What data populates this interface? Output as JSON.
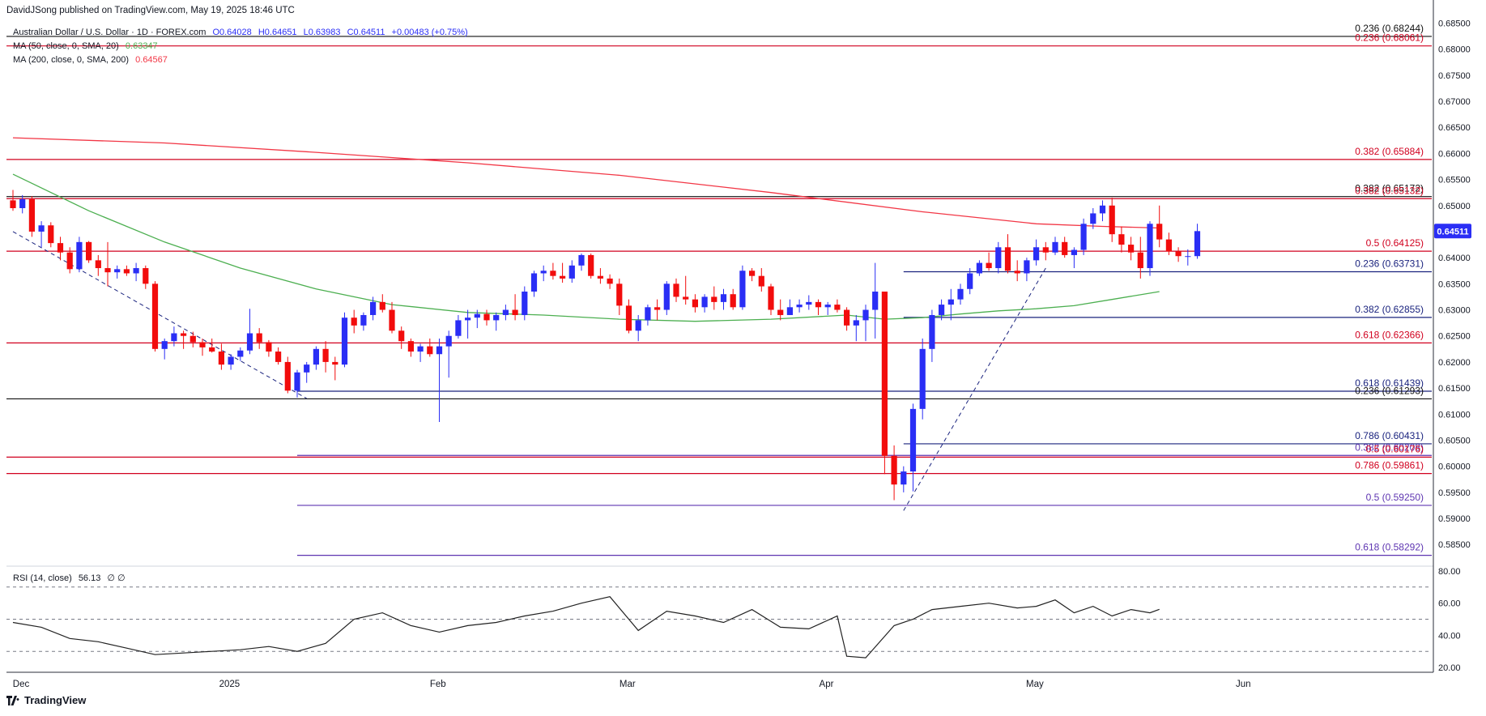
{
  "header": {
    "publisher": "DavidJSong published on TradingView.com, May 19, 2025 18:46 UTC"
  },
  "legend": {
    "symbol": "Australian Dollar / U.S. Dollar · 1D · FOREX.com",
    "open": "O0.64028",
    "high": "H0.64651",
    "low": "L0.63983",
    "close": "C0.64511",
    "change": "+0.00483 (+0.75%)",
    "ma50_label": "MA (50, close, 0, SMA, 20)",
    "ma50_value": "0.63347",
    "ma200_label": "MA (200, close, 0, SMA, 200)",
    "ma200_value": "0.64567",
    "rsi_label": "RSI (14, close)",
    "rsi_value": "56.13",
    "rsi_extra": "∅ ∅"
  },
  "footer": {
    "brand": "TradingView"
  },
  "colors": {
    "up": "#2a2ef5",
    "down": "#f20c0c",
    "ma50": "#4caf50",
    "ma200": "#f23645",
    "fib_red": "#d1001f",
    "fib_blue": "#1a237e",
    "fib_purple": "#5e35b1",
    "rsi": "#222222"
  },
  "chart_data": [
    {
      "type": "candlestick",
      "title": "",
      "ylim": [
        0.581,
        0.686
      ],
      "y_ticks": [
        "0.68500",
        "0.68000",
        "0.67500",
        "0.67000",
        "0.66500",
        "0.66000",
        "0.65500",
        "0.65000",
        "0.64500",
        "0.64000",
        "0.63500",
        "0.63000",
        "0.62500",
        "0.62000",
        "0.61500",
        "0.61000",
        "0.60500",
        "0.60000",
        "0.59500",
        "0.59000",
        "0.58500"
      ],
      "x_labels": [
        {
          "label": "Dec",
          "index": 0
        },
        {
          "label": "2025",
          "index": 22
        },
        {
          "label": "Feb",
          "index": 44
        },
        {
          "label": "Mar",
          "index": 64
        },
        {
          "label": "Apr",
          "index": 85
        },
        {
          "label": "May",
          "index": 107
        },
        {
          "label": "Jun",
          "index": 129
        }
      ],
      "last_price": "0.64511",
      "ohlc": [
        [
          0.651,
          0.653,
          0.649,
          0.6495
        ],
        [
          0.6495,
          0.652,
          0.6485,
          0.6512
        ],
        [
          0.6512,
          0.6518,
          0.644,
          0.645
        ],
        [
          0.645,
          0.647,
          0.642,
          0.6462
        ],
        [
          0.6462,
          0.6468,
          0.642,
          0.6428
        ],
        [
          0.6428,
          0.644,
          0.6395,
          0.641
        ],
        [
          0.641,
          0.642,
          0.637,
          0.6378
        ],
        [
          0.6378,
          0.644,
          0.6372,
          0.643
        ],
        [
          0.643,
          0.6432,
          0.639,
          0.6395
        ],
        [
          0.6395,
          0.6405,
          0.6365,
          0.638
        ],
        [
          0.638,
          0.643,
          0.6345,
          0.6372
        ],
        [
          0.6372,
          0.6385,
          0.636,
          0.6378
        ],
        [
          0.6378,
          0.6385,
          0.6365,
          0.637
        ],
        [
          0.637,
          0.639,
          0.6355,
          0.638
        ],
        [
          0.638,
          0.6385,
          0.634,
          0.635
        ],
        [
          0.635,
          0.6355,
          0.622,
          0.6225
        ],
        [
          0.6225,
          0.6245,
          0.6205,
          0.624
        ],
        [
          0.624,
          0.6268,
          0.623,
          0.6255
        ],
        [
          0.6255,
          0.626,
          0.6225,
          0.625
        ],
        [
          0.625,
          0.6258,
          0.6228,
          0.6238
        ],
        [
          0.6238,
          0.6245,
          0.6212,
          0.6228
        ],
        [
          0.6228,
          0.6245,
          0.6218,
          0.622
        ],
        [
          0.622,
          0.6235,
          0.6185,
          0.6195
        ],
        [
          0.6195,
          0.6215,
          0.6185,
          0.621
        ],
        [
          0.621,
          0.6228,
          0.6202,
          0.6222
        ],
        [
          0.6222,
          0.6302,
          0.6215,
          0.6255
        ],
        [
          0.6255,
          0.6265,
          0.6225,
          0.6238
        ],
        [
          0.6238,
          0.6242,
          0.621,
          0.622
        ],
        [
          0.622,
          0.6228,
          0.6195,
          0.62
        ],
        [
          0.62,
          0.621,
          0.614,
          0.6145
        ],
        [
          0.6145,
          0.6185,
          0.6132,
          0.618
        ],
        [
          0.618,
          0.62,
          0.616,
          0.6195
        ],
        [
          0.6195,
          0.623,
          0.6185,
          0.6225
        ],
        [
          0.6225,
          0.624,
          0.618,
          0.62
        ],
        [
          0.62,
          0.621,
          0.6165,
          0.6195
        ],
        [
          0.6195,
          0.6295,
          0.619,
          0.6285
        ],
        [
          0.6285,
          0.63,
          0.6255,
          0.627
        ],
        [
          0.627,
          0.6295,
          0.626,
          0.629
        ],
        [
          0.629,
          0.6325,
          0.628,
          0.6315
        ],
        [
          0.6315,
          0.633,
          0.6295,
          0.63
        ],
        [
          0.63,
          0.6315,
          0.6255,
          0.626
        ],
        [
          0.626,
          0.6268,
          0.6225,
          0.624
        ],
        [
          0.624,
          0.6245,
          0.621,
          0.622
        ],
        [
          0.622,
          0.6235,
          0.62,
          0.623
        ],
        [
          0.623,
          0.6245,
          0.621,
          0.6215
        ],
        [
          0.6215,
          0.6245,
          0.6085,
          0.623
        ],
        [
          0.623,
          0.626,
          0.617,
          0.625
        ],
        [
          0.625,
          0.629,
          0.6245,
          0.628
        ],
        [
          0.628,
          0.63,
          0.6245,
          0.6285
        ],
        [
          0.6285,
          0.63,
          0.6265,
          0.6292
        ],
        [
          0.6292,
          0.63,
          0.627,
          0.628
        ],
        [
          0.628,
          0.6295,
          0.626,
          0.629
        ],
        [
          0.629,
          0.631,
          0.628,
          0.63
        ],
        [
          0.63,
          0.633,
          0.628,
          0.629
        ],
        [
          0.629,
          0.6345,
          0.628,
          0.6335
        ],
        [
          0.6335,
          0.6375,
          0.6325,
          0.637
        ],
        [
          0.637,
          0.6385,
          0.6355,
          0.6375
        ],
        [
          0.6375,
          0.639,
          0.6358,
          0.6365
        ],
        [
          0.6365,
          0.639,
          0.6352,
          0.636
        ],
        [
          0.636,
          0.6395,
          0.6352,
          0.6385
        ],
        [
          0.6385,
          0.6408,
          0.6375,
          0.6405
        ],
        [
          0.6405,
          0.6408,
          0.636,
          0.6365
        ],
        [
          0.6365,
          0.638,
          0.635,
          0.636
        ],
        [
          0.636,
          0.6368,
          0.634,
          0.635
        ],
        [
          0.635,
          0.636,
          0.629,
          0.6308
        ],
        [
          0.6308,
          0.632,
          0.6255,
          0.626
        ],
        [
          0.626,
          0.629,
          0.624,
          0.628
        ],
        [
          0.628,
          0.631,
          0.627,
          0.6305
        ],
        [
          0.6305,
          0.632,
          0.628,
          0.63
        ],
        [
          0.63,
          0.6355,
          0.629,
          0.635
        ],
        [
          0.635,
          0.636,
          0.6315,
          0.6325
        ],
        [
          0.6325,
          0.6365,
          0.631,
          0.632
        ],
        [
          0.632,
          0.633,
          0.6295,
          0.6305
        ],
        [
          0.6305,
          0.633,
          0.6295,
          0.6325
        ],
        [
          0.6325,
          0.6345,
          0.63,
          0.6315
        ],
        [
          0.6315,
          0.634,
          0.63,
          0.633
        ],
        [
          0.633,
          0.634,
          0.63,
          0.6305
        ],
        [
          0.6305,
          0.6385,
          0.63,
          0.6375
        ],
        [
          0.6375,
          0.638,
          0.6355,
          0.6365
        ],
        [
          0.6365,
          0.638,
          0.6335,
          0.6345
        ],
        [
          0.6345,
          0.635,
          0.629,
          0.63
        ],
        [
          0.63,
          0.632,
          0.628,
          0.629
        ],
        [
          0.629,
          0.632,
          0.629,
          0.6305
        ],
        [
          0.6305,
          0.632,
          0.6295,
          0.631
        ],
        [
          0.631,
          0.6328,
          0.63,
          0.6315
        ],
        [
          0.6315,
          0.632,
          0.629,
          0.6305
        ],
        [
          0.6305,
          0.6315,
          0.629,
          0.631
        ],
        [
          0.631,
          0.632,
          0.6295,
          0.63
        ],
        [
          0.63,
          0.6305,
          0.626,
          0.627
        ],
        [
          0.627,
          0.629,
          0.624,
          0.628
        ],
        [
          0.628,
          0.631,
          0.624,
          0.63
        ],
        [
          0.63,
          0.639,
          0.6245,
          0.6335
        ],
        [
          0.6335,
          0.6335,
          0.5985,
          0.602
        ],
        [
          0.602,
          0.604,
          0.5935,
          0.5965
        ],
        [
          0.5965,
          0.6,
          0.595,
          0.599
        ],
        [
          0.599,
          0.612,
          0.5952,
          0.611
        ],
        [
          0.611,
          0.6245,
          0.609,
          0.6225
        ],
        [
          0.6225,
          0.63,
          0.62,
          0.629
        ],
        [
          0.629,
          0.632,
          0.628,
          0.631
        ],
        [
          0.631,
          0.634,
          0.628,
          0.632
        ],
        [
          0.632,
          0.635,
          0.631,
          0.634
        ],
        [
          0.634,
          0.638,
          0.633,
          0.637
        ],
        [
          0.637,
          0.6395,
          0.6365,
          0.639
        ],
        [
          0.639,
          0.641,
          0.6375,
          0.638
        ],
        [
          0.638,
          0.643,
          0.637,
          0.642
        ],
        [
          0.642,
          0.6445,
          0.637,
          0.6375
        ],
        [
          0.6375,
          0.6395,
          0.6355,
          0.637
        ],
        [
          0.637,
          0.64,
          0.6355,
          0.6395
        ],
        [
          0.6395,
          0.6435,
          0.6385,
          0.642
        ],
        [
          0.642,
          0.643,
          0.6395,
          0.641
        ],
        [
          0.641,
          0.644,
          0.6405,
          0.643
        ],
        [
          0.643,
          0.644,
          0.64,
          0.6405
        ],
        [
          0.6405,
          0.642,
          0.638,
          0.6415
        ],
        [
          0.6415,
          0.6475,
          0.6405,
          0.6465
        ],
        [
          0.6465,
          0.6495,
          0.6455,
          0.6485
        ],
        [
          0.6485,
          0.651,
          0.647,
          0.65
        ],
        [
          0.65,
          0.6515,
          0.643,
          0.6445
        ],
        [
          0.6445,
          0.646,
          0.641,
          0.6425
        ],
        [
          0.6425,
          0.644,
          0.6395,
          0.641
        ],
        [
          0.641,
          0.644,
          0.636,
          0.638
        ],
        [
          0.638,
          0.647,
          0.6365,
          0.6465
        ],
        [
          0.6465,
          0.65,
          0.642,
          0.6435
        ],
        [
          0.6435,
          0.6448,
          0.6405,
          0.6412
        ],
        [
          0.6412,
          0.642,
          0.6392,
          0.6403
        ],
        [
          0.6403,
          0.6416,
          0.6385,
          0.6403
        ],
        [
          0.6403,
          0.6465,
          0.6398,
          0.6451
        ]
      ],
      "ma50": [
        [
          0,
          0.656
        ],
        [
          8,
          0.649
        ],
        [
          16,
          0.643
        ],
        [
          24,
          0.638
        ],
        [
          32,
          0.634
        ],
        [
          40,
          0.631
        ],
        [
          48,
          0.6295
        ],
        [
          56,
          0.629
        ],
        [
          64,
          0.6282
        ],
        [
          72,
          0.6278
        ],
        [
          80,
          0.6282
        ],
        [
          88,
          0.629
        ],
        [
          92,
          0.6282
        ],
        [
          96,
          0.6285
        ],
        [
          100,
          0.6292
        ],
        [
          104,
          0.6298
        ],
        [
          108,
          0.6302
        ],
        [
          112,
          0.6308
        ],
        [
          116,
          0.632
        ],
        [
          121,
          0.6335
        ]
      ],
      "ma200": [
        [
          0,
          0.663
        ],
        [
          16,
          0.662
        ],
        [
          32,
          0.6602
        ],
        [
          48,
          0.6582
        ],
        [
          64,
          0.6558
        ],
        [
          80,
          0.6525
        ],
        [
          96,
          0.6488
        ],
        [
          108,
          0.6465
        ],
        [
          115,
          0.646
        ],
        [
          121,
          0.6457
        ]
      ],
      "trendlines": [
        {
          "from": [
            0,
            0.645
          ],
          "to": [
            31,
            0.613
          ],
          "style": "dashed",
          "color": "#1a237e"
        },
        {
          "from": [
            94,
            0.5915
          ],
          "to": [
            109,
            0.638
          ],
          "style": "dashed",
          "color": "#1a237e"
        }
      ],
      "fib_levels": [
        {
          "label": "0.236 (0.68061)",
          "value": 0.68061,
          "color": "#d1001f",
          "start": 0
        },
        {
          "label": "0.236 (0.68244)",
          "value": 0.68244,
          "color": "#111111",
          "start": 0
        },
        {
          "label": "0.382 (0.65884)",
          "value": 0.65884,
          "color": "#d1001f",
          "start": 0
        },
        {
          "label": "0.382 (0.65172)",
          "value": 0.65172,
          "color": "#111111",
          "start": 0
        },
        {
          "label": "0.382 (0.65132)",
          "value": 0.65132,
          "color": "#d1001f",
          "start": 0
        },
        {
          "label": "0.5 (0.64125)",
          "value": 0.64125,
          "color": "#d1001f",
          "start": 0
        },
        {
          "label": "0.236 (0.63731)",
          "value": 0.63731,
          "color": "#1a237e",
          "start": 94
        },
        {
          "label": "0.382 (0.62855)",
          "value": 0.62855,
          "color": "#1a237e",
          "start": 94
        },
        {
          "label": "0.618 (0.62366)",
          "value": 0.62366,
          "color": "#d1001f",
          "start": 0
        },
        {
          "label": "0.618 (0.61439)",
          "value": 0.61439,
          "color": "#1a237e",
          "start": 30
        },
        {
          "label": "0.236 (0.61293)",
          "value": 0.61293,
          "color": "#111111",
          "start": 0
        },
        {
          "label": "0.786 (0.60431)",
          "value": 0.60431,
          "color": "#1a237e",
          "start": 94
        },
        {
          "label": "0.382 (0.60208)",
          "value": 0.60208,
          "color": "#5e35b1",
          "start": 30
        },
        {
          "label": "0.5 (0.60176)",
          "value": 0.60176,
          "color": "#d1001f",
          "start": 0
        },
        {
          "label": "0.786 (0.59861)",
          "value": 0.59861,
          "color": "#d1001f",
          "start": 0
        },
        {
          "label": "0.5 (0.59250)",
          "value": 0.5925,
          "color": "#5e35b1",
          "start": 30
        },
        {
          "label": "0.618 (0.58292)",
          "value": 0.58292,
          "color": "#5e35b1",
          "start": 30
        }
      ]
    },
    {
      "type": "line",
      "title": "RSI (14, close)",
      "ylim": [
        17,
        83
      ],
      "y_ticks": [
        "80.00",
        "60.00",
        "40.00",
        "20.00"
      ],
      "bands": [
        70,
        50,
        30
      ],
      "x": [
        0,
        3,
        6,
        9,
        12,
        15,
        18,
        21,
        24,
        27,
        30,
        33,
        36,
        39,
        42,
        45,
        48,
        51,
        54,
        57,
        60,
        63,
        66,
        69,
        72,
        75,
        78,
        81,
        84,
        87,
        88,
        90,
        93,
        95,
        97,
        100,
        103,
        106,
        108,
        110,
        112,
        114,
        116,
        118,
        120,
        121
      ],
      "values": [
        48,
        45,
        38,
        36,
        32,
        28,
        29,
        30,
        31,
        33,
        30,
        35,
        50,
        54,
        46,
        42,
        46,
        48,
        52,
        55,
        60,
        64,
        43,
        55,
        52,
        48,
        56,
        45,
        44,
        52,
        27,
        26,
        46,
        50,
        56,
        58,
        60,
        57,
        58,
        62,
        54,
        58,
        52,
        56,
        54,
        56.13
      ]
    }
  ]
}
